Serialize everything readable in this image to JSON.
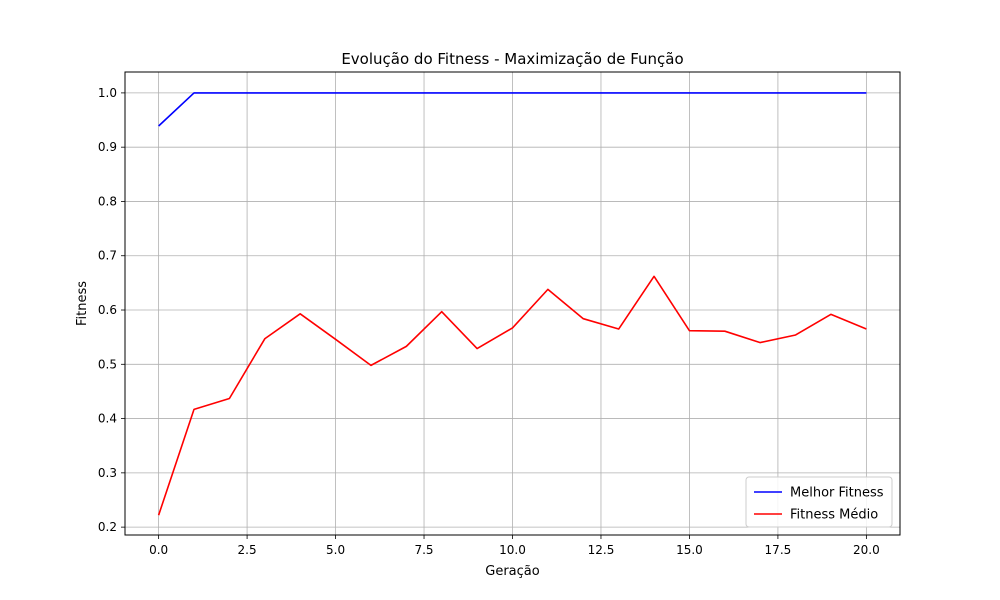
{
  "chart_data": {
    "type": "line",
    "title": "Evolução do Fitness - Maximização de Função",
    "xlabel": "Geração",
    "ylabel": "Fitness",
    "xlim": [
      -0.95,
      20.95
    ],
    "ylim": [
      0.1855,
      1.0385
    ],
    "xticks": [
      0.0,
      2.5,
      5.0,
      7.5,
      10.0,
      12.5,
      15.0,
      17.5,
      20.0
    ],
    "xtick_labels": [
      "0.0",
      "2.5",
      "5.0",
      "7.5",
      "10.0",
      "12.5",
      "15.0",
      "17.5",
      "20.0"
    ],
    "yticks": [
      0.2,
      0.3,
      0.4,
      0.5,
      0.6,
      0.7,
      0.8,
      0.9,
      1.0
    ],
    "ytick_labels": [
      "0.2",
      "0.3",
      "0.4",
      "0.5",
      "0.6",
      "0.7",
      "0.8",
      "0.9",
      "1.0"
    ],
    "grid": true,
    "legend_position": "bottom-right",
    "x": [
      0,
      1,
      2,
      3,
      4,
      5,
      6,
      7,
      8,
      9,
      10,
      11,
      12,
      13,
      14,
      15,
      16,
      17,
      18,
      19,
      20
    ],
    "series": [
      {
        "name": "Melhor Fitness",
        "color": "#0000ff",
        "values": [
          0.939,
          1.0,
          1.0,
          1.0,
          1.0,
          1.0,
          1.0,
          1.0,
          1.0,
          1.0,
          1.0,
          1.0,
          1.0,
          1.0,
          1.0,
          1.0,
          1.0,
          1.0,
          1.0,
          1.0,
          1.0
        ]
      },
      {
        "name": "Fitness Médio",
        "color": "#ff0000",
        "values": [
          0.222,
          0.417,
          0.437,
          0.547,
          0.593,
          0.546,
          0.498,
          0.533,
          0.597,
          0.529,
          0.567,
          0.638,
          0.584,
          0.565,
          0.662,
          0.562,
          0.561,
          0.54,
          0.554,
          0.592,
          0.565
        ]
      }
    ]
  }
}
